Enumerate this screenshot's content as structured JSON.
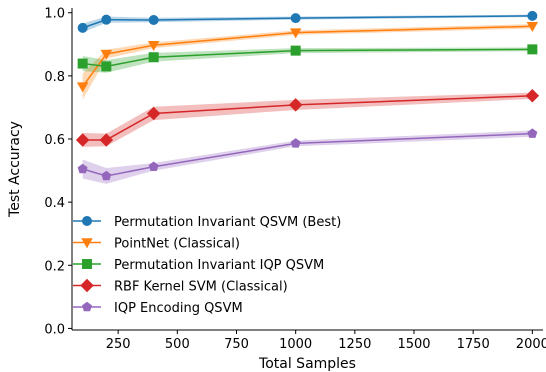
{
  "chart_data": {
    "type": "line",
    "title": "",
    "xlabel": "Total Samples",
    "ylabel": "Test Accuracy",
    "xlim": [
      55,
      2045
    ],
    "ylim": [
      -0.005,
      1.015
    ],
    "x_ticks": [
      250,
      500,
      750,
      1000,
      1250,
      1500,
      1750,
      2000
    ],
    "x_tick_labels": [
      "250",
      "500",
      "750",
      "1000",
      "1250",
      "1500",
      "1750",
      "2000"
    ],
    "y_ticks": [
      0.0,
      0.2,
      0.4,
      0.6,
      0.8,
      1.0
    ],
    "y_tick_labels": [
      "0.0",
      "0.2",
      "0.4",
      "0.6",
      "0.8",
      "1.0"
    ],
    "grid": false,
    "legend_position": "lower-left",
    "x": [
      100,
      200,
      400,
      1000,
      2000
    ],
    "series": [
      {
        "name": "Permutation Invariant QSVM (Best)",
        "color": "#1f77b4",
        "marker": "circle",
        "values": [
          0.952,
          0.978,
          0.977,
          0.983,
          0.99
        ],
        "lower": [
          0.938,
          0.968,
          0.97,
          0.978,
          0.986
        ],
        "upper": [
          0.966,
          0.988,
          0.984,
          0.988,
          0.994
        ]
      },
      {
        "name": "PointNet (Classical)",
        "color": "#ff7f0e",
        "marker": "triangle-down",
        "values": [
          0.766,
          0.869,
          0.897,
          0.937,
          0.957
        ],
        "lower": [
          0.725,
          0.855,
          0.888,
          0.93,
          0.95
        ],
        "upper": [
          0.807,
          0.883,
          0.906,
          0.944,
          0.964
        ]
      },
      {
        "name": "Permutation Invariant IQP QSVM",
        "color": "#2ca02c",
        "marker": "square",
        "values": [
          0.839,
          0.83,
          0.859,
          0.88,
          0.884
        ],
        "lower": [
          0.815,
          0.81,
          0.845,
          0.872,
          0.878
        ],
        "upper": [
          0.863,
          0.85,
          0.873,
          0.888,
          0.89
        ]
      },
      {
        "name": "RBF Kernel SVM (Classical)",
        "color": "#d62728",
        "marker": "diamond",
        "values": [
          0.597,
          0.597,
          0.681,
          0.708,
          0.737
        ],
        "lower": [
          0.575,
          0.577,
          0.66,
          0.692,
          0.727
        ],
        "upper": [
          0.619,
          0.617,
          0.702,
          0.724,
          0.747
        ]
      },
      {
        "name": "IQP Encoding QSVM",
        "color": "#9467bd",
        "marker": "pentagon",
        "values": [
          0.505,
          0.483,
          0.512,
          0.586,
          0.617
        ],
        "lower": [
          0.475,
          0.458,
          0.5,
          0.577,
          0.607
        ],
        "upper": [
          0.535,
          0.508,
          0.524,
          0.595,
          0.627
        ]
      }
    ]
  }
}
